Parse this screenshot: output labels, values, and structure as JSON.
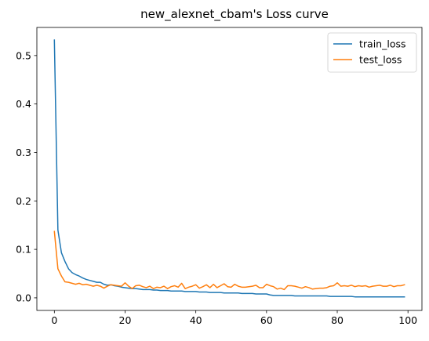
{
  "chart_data": {
    "type": "line",
    "title": "new_alexnet_cbam's Loss curve",
    "xlabel": "",
    "ylabel": "",
    "xlim": [
      -4.95,
      103.95
    ],
    "ylim": [
      -0.026,
      0.558
    ],
    "x_ticks": [
      0,
      20,
      40,
      60,
      80,
      100
    ],
    "y_ticks": [
      0.0,
      0.1,
      0.2,
      0.3,
      0.4,
      0.5
    ],
    "x_tick_labels": [
      "0",
      "20",
      "40",
      "60",
      "80",
      "100"
    ],
    "y_tick_labels": [
      "0.0",
      "0.1",
      "0.2",
      "0.3",
      "0.4",
      "0.5"
    ],
    "grid": false,
    "legend_position": "top-right",
    "series": [
      {
        "name": "train_loss",
        "color": "#1f77b4",
        "values": [
          0.532,
          0.14,
          0.093,
          0.075,
          0.06,
          0.052,
          0.048,
          0.045,
          0.041,
          0.038,
          0.036,
          0.034,
          0.032,
          0.032,
          0.028,
          0.026,
          0.027,
          0.025,
          0.024,
          0.022,
          0.021,
          0.02,
          0.019,
          0.019,
          0.018,
          0.017,
          0.017,
          0.017,
          0.016,
          0.016,
          0.015,
          0.015,
          0.015,
          0.014,
          0.014,
          0.014,
          0.014,
          0.013,
          0.013,
          0.013,
          0.013,
          0.012,
          0.012,
          0.012,
          0.011,
          0.011,
          0.011,
          0.011,
          0.01,
          0.01,
          0.01,
          0.01,
          0.01,
          0.009,
          0.009,
          0.009,
          0.009,
          0.008,
          0.008,
          0.008,
          0.008,
          0.006,
          0.005,
          0.005,
          0.005,
          0.005,
          0.005,
          0.005,
          0.004,
          0.004,
          0.004,
          0.004,
          0.004,
          0.004,
          0.004,
          0.004,
          0.004,
          0.004,
          0.003,
          0.003,
          0.003,
          0.003,
          0.003,
          0.003,
          0.003,
          0.002,
          0.002,
          0.002,
          0.002,
          0.002,
          0.002,
          0.002,
          0.002,
          0.002,
          0.002,
          0.002,
          0.002,
          0.002,
          0.002,
          0.002
        ]
      },
      {
        "name": "test_loss",
        "color": "#ff7f0e",
        "values": [
          0.137,
          0.06,
          0.045,
          0.033,
          0.032,
          0.03,
          0.028,
          0.03,
          0.027,
          0.028,
          0.026,
          0.024,
          0.026,
          0.024,
          0.02,
          0.024,
          0.027,
          0.026,
          0.025,
          0.024,
          0.031,
          0.024,
          0.019,
          0.025,
          0.026,
          0.023,
          0.021,
          0.024,
          0.019,
          0.022,
          0.021,
          0.024,
          0.019,
          0.023,
          0.025,
          0.022,
          0.03,
          0.019,
          0.022,
          0.024,
          0.027,
          0.02,
          0.023,
          0.027,
          0.021,
          0.028,
          0.021,
          0.025,
          0.029,
          0.023,
          0.022,
          0.028,
          0.024,
          0.022,
          0.022,
          0.023,
          0.024,
          0.026,
          0.021,
          0.021,
          0.028,
          0.025,
          0.023,
          0.018,
          0.02,
          0.017,
          0.025,
          0.025,
          0.024,
          0.022,
          0.02,
          0.023,
          0.021,
          0.018,
          0.019,
          0.02,
          0.02,
          0.021,
          0.024,
          0.025,
          0.031,
          0.024,
          0.025,
          0.024,
          0.026,
          0.023,
          0.025,
          0.024,
          0.025,
          0.022,
          0.024,
          0.025,
          0.026,
          0.024,
          0.024,
          0.026,
          0.023,
          0.025,
          0.025,
          0.027
        ]
      }
    ]
  }
}
